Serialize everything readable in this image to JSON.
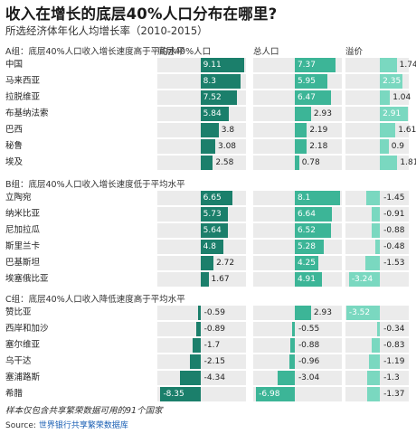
{
  "title": "收入在增长的底层40%人口分布在哪里?",
  "subtitle": "所选经济体年化人均增长率（2010-2015）",
  "column_headers": [
    "底层40%人口",
    "总人口",
    "溢价"
  ],
  "note": "样本仅包含共享繁荣数据可用的91个国家",
  "source_label": "Source:",
  "source_text": "世界银行共享繁荣数据库",
  "colors": {
    "dark": "#1b7f6b",
    "mid": "#3cb597",
    "light": "#7ad8c0"
  },
  "chart_data": {
    "type": "bar",
    "title": "收入在增长的底层40%人口分布在哪里?",
    "subtitle": "所选经济体年化人均增长率（2010-2015）",
    "series_names": [
      "底层40%人口",
      "总人口",
      "溢价"
    ],
    "groups": [
      {
        "label": "A组：底层40%人口收入增长速度高于平均水平",
        "rows": [
          {
            "country": "中国",
            "values": [
              9.11,
              7.37,
              1.74
            ]
          },
          {
            "country": "马来西亚",
            "values": [
              8.3,
              5.95,
              2.35
            ]
          },
          {
            "country": "拉脱维亚",
            "values": [
              7.52,
              6.47,
              1.04
            ]
          },
          {
            "country": "布基纳法索",
            "values": [
              5.84,
              2.93,
              2.91
            ]
          },
          {
            "country": "巴西",
            "values": [
              3.8,
              2.19,
              1.61
            ]
          },
          {
            "country": "秘鲁",
            "values": [
              3.08,
              2.18,
              0.9
            ]
          },
          {
            "country": "埃及",
            "values": [
              2.58,
              0.78,
              1.81
            ]
          }
        ]
      },
      {
        "label": "B组：底层40%人口收入增长速度低于平均水平",
        "rows": [
          {
            "country": "立陶宛",
            "values": [
              6.65,
              8.1,
              -1.45
            ]
          },
          {
            "country": "纳米比亚",
            "values": [
              5.73,
              6.64,
              -0.91
            ]
          },
          {
            "country": "尼加拉瓜",
            "values": [
              5.64,
              6.52,
              -0.88
            ]
          },
          {
            "country": "斯里兰卡",
            "values": [
              4.8,
              5.28,
              -0.48
            ]
          },
          {
            "country": "巴基斯坦",
            "values": [
              2.72,
              4.25,
              -1.53
            ]
          },
          {
            "country": "埃塞俄比亚",
            "values": [
              1.67,
              4.91,
              -3.24
            ]
          }
        ]
      },
      {
        "label": "C组：底层40%人口收入降低速度高于平均水平",
        "rows": [
          {
            "country": "赞比亚",
            "values": [
              -0.59,
              2.93,
              -3.52
            ]
          },
          {
            "country": "西岸和加沙",
            "values": [
              -0.89,
              -0.55,
              -0.34
            ]
          },
          {
            "country": "塞尔维亚",
            "values": [
              -1.7,
              -0.88,
              -0.83
            ]
          },
          {
            "country": "乌干达",
            "values": [
              -2.15,
              -0.96,
              -1.19
            ]
          },
          {
            "country": "塞浦路斯",
            "values": [
              -4.34,
              -3.04,
              -1.3
            ]
          },
          {
            "country": "希腊",
            "values": [
              -8.35,
              -6.98,
              -1.37
            ]
          }
        ]
      }
    ]
  }
}
